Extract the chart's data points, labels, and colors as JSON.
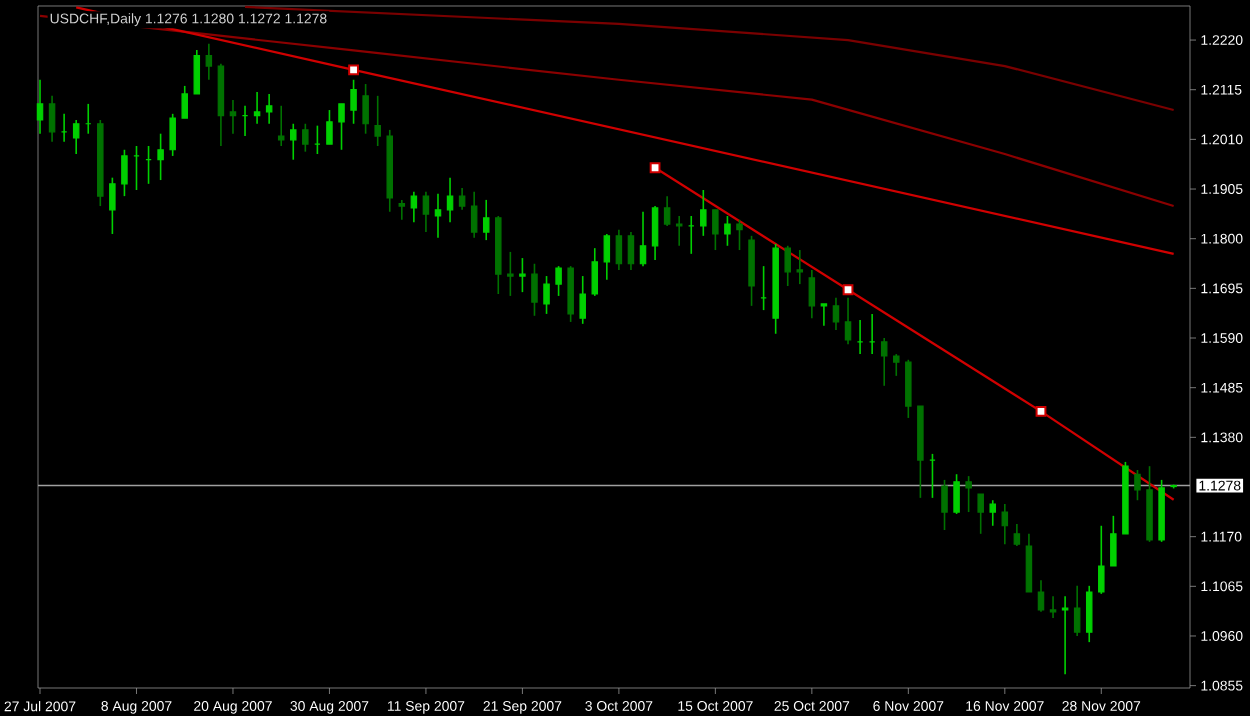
{
  "chart_data": {
    "type": "candlestick",
    "title": "USDCHF,Daily  1.1276 1.1280 1.1272 1.1278",
    "colors": [
      "#00d000",
      "#007200",
      "#00d000",
      "#00d000",
      "#00d000",
      "#007200",
      "#00d000",
      "#00d000",
      "#00d000",
      "#00d000",
      "#00d000",
      "#00d000",
      "#00d000",
      "#00d000",
      "#007200",
      "#007200",
      "#007200",
      "#00d000",
      "#00d000",
      "#00d000",
      "#007200",
      "#00d000",
      "#007200",
      "#00d000",
      "#00d000",
      "#00d000",
      "#00d000",
      "#007200",
      "#007200",
      "#007200",
      "#007200",
      "#00d000",
      "#007200",
      "#00d000",
      "#00d000",
      "#007200",
      "#007200",
      "#00d000",
      "#007200",
      "#007200",
      "#00d000",
      "#007200",
      "#00d000",
      "#00d000",
      "#007200",
      "#00d000",
      "#00d000",
      "#00d000",
      "#007200",
      "#007200",
      "#00d000",
      "#00d000",
      "#007200",
      "#007200",
      "#00d000",
      "#00d000",
      "#007200",
      "#00d000",
      "#007200",
      "#007200",
      "#00d000",
      "#00d000",
      "#007200",
      "#007200",
      "#007200",
      "#00d000",
      "#007200",
      "#007200",
      "#00d000",
      "#00d000",
      "#007200",
      "#007200",
      "#007200",
      "#007200",
      "#00d000",
      "#007200",
      "#00d000",
      "#007200",
      "#007200",
      "#00d000",
      "#007200",
      "#007200",
      "#007200",
      "#007200",
      "#007200",
      "#00d000",
      "#007200",
      "#00d000",
      "#00d000",
      "#00d000",
      "#00d000",
      "#007200",
      "#007200",
      "#00d000",
      "#00d000"
    ],
    "categories": [
      "27 Jul 2007",
      null,
      null,
      null,
      null,
      null,
      null,
      null,
      "8 Aug 2007",
      null,
      null,
      null,
      null,
      null,
      null,
      null,
      "20 Aug 2007",
      null,
      null,
      null,
      null,
      null,
      null,
      null,
      "30 Aug 2007",
      null,
      null,
      null,
      null,
      null,
      null,
      null,
      "11 Sep 2007",
      null,
      null,
      null,
      null,
      null,
      null,
      null,
      "21 Sep 2007",
      null,
      null,
      null,
      null,
      null,
      null,
      null,
      "3 Oct 2007",
      null,
      null,
      null,
      null,
      null,
      null,
      null,
      "15 Oct 2007",
      null,
      null,
      null,
      null,
      null,
      null,
      null,
      "25 Oct 2007",
      null,
      null,
      null,
      null,
      null,
      null,
      null,
      "6 Nov 2007",
      null,
      null,
      null,
      null,
      null,
      null,
      null,
      "16 Nov 2007",
      null,
      null,
      null,
      null,
      null,
      null,
      null,
      "28 Nov 2007",
      null,
      null,
      null,
      null,
      null,
      null
    ],
    "ohlc": [
      [
        1.2051,
        1.2136,
        1.2022,
        1.2085
      ],
      [
        1.2085,
        1.2102,
        1.2005,
        1.2026
      ],
      [
        1.2026,
        1.2064,
        1.2005,
        1.2026
      ],
      [
        1.2013,
        1.2051,
        1.1979,
        1.2043
      ],
      [
        1.2043,
        1.2085,
        1.2022,
        1.2043
      ],
      [
        1.2043,
        1.2051,
        1.1869,
        1.189
      ],
      [
        1.1861,
        1.1929,
        1.181,
        1.1916
      ],
      [
        1.1916,
        1.1988,
        1.189,
        1.1975
      ],
      [
        1.1975,
        1.1996,
        1.1903,
        1.1975
      ],
      [
        1.1967,
        1.1996,
        1.1916,
        1.1967
      ],
      [
        1.1967,
        1.2022,
        1.1924,
        1.1988
      ],
      [
        1.1988,
        1.2064,
        1.1975,
        1.2055
      ],
      [
        1.2055,
        1.2123,
        1.2055,
        1.2106
      ],
      [
        1.2106,
        1.2199,
        1.2106,
        1.2187
      ],
      [
        1.2187,
        1.2212,
        1.2136,
        1.2165
      ],
      [
        1.2165,
        1.217,
        1.1996,
        1.206
      ],
      [
        1.2068,
        1.2093,
        1.2022,
        1.206
      ],
      [
        1.206,
        1.2081,
        1.2017,
        1.206
      ],
      [
        1.206,
        1.211,
        1.2043,
        1.2068
      ],
      [
        1.2068,
        1.2106,
        1.2043,
        1.2081
      ],
      [
        1.2017,
        1.2081,
        1.1996,
        1.2009
      ],
      [
        1.2009,
        1.2043,
        1.1967,
        1.203
      ],
      [
        1.203,
        1.2043,
        1.1984,
        1.2
      ],
      [
        1.2,
        1.2039,
        1.1979,
        1.2
      ],
      [
        1.2,
        1.2072,
        1.2,
        1.2047
      ],
      [
        1.2047,
        1.2085,
        1.1988,
        1.2085
      ],
      [
        1.2072,
        1.2136,
        1.2043,
        1.2115
      ],
      [
        1.2102,
        1.2127,
        1.2022,
        1.2043
      ],
      [
        1.2039,
        1.2102,
        1.1996,
        1.2017
      ],
      [
        1.2017,
        1.203,
        1.1857,
        1.1886
      ],
      [
        1.1874,
        1.1882,
        1.184,
        1.1869
      ],
      [
        1.1865,
        1.1899,
        1.1835,
        1.189
      ],
      [
        1.189,
        1.1899,
        1.1814,
        1.1852
      ],
      [
        1.1848,
        1.1895,
        1.1802,
        1.1861
      ],
      [
        1.1861,
        1.1929,
        1.1835,
        1.189
      ],
      [
        1.189,
        1.1907,
        1.1861,
        1.1869
      ],
      [
        1.1869,
        1.1899,
        1.1802,
        1.1814
      ],
      [
        1.1814,
        1.1882,
        1.1797,
        1.1844
      ],
      [
        1.1844,
        1.1848,
        1.1683,
        1.1725
      ],
      [
        1.1725,
        1.1772,
        1.1679,
        1.1721
      ],
      [
        1.1721,
        1.1759,
        1.1687,
        1.1725
      ],
      [
        1.1725,
        1.1747,
        1.1637,
        1.1666
      ],
      [
        1.1662,
        1.1721,
        1.1641,
        1.1704
      ],
      [
        1.1704,
        1.1742,
        1.1679,
        1.1738
      ],
      [
        1.1738,
        1.1742,
        1.1624,
        1.1641
      ],
      [
        1.1632,
        1.1721,
        1.162,
        1.1683
      ],
      [
        1.1683,
        1.178,
        1.1679,
        1.1751
      ],
      [
        1.1751,
        1.181,
        1.1713,
        1.1806
      ],
      [
        1.1806,
        1.1819,
        1.1734,
        1.1747
      ],
      [
        1.1806,
        1.1814,
        1.1734,
        1.1747
      ],
      [
        1.1747,
        1.1857,
        1.1742,
        1.1785
      ],
      [
        1.1785,
        1.1869,
        1.1755,
        1.1865
      ],
      [
        1.1865,
        1.189,
        1.1827,
        1.1831
      ],
      [
        1.1831,
        1.1848,
        1.1785,
        1.1827
      ],
      [
        1.1827,
        1.1848,
        1.1768,
        1.1827
      ],
      [
        1.1827,
        1.1903,
        1.1806,
        1.1861
      ],
      [
        1.1861,
        1.1861,
        1.1776,
        1.181
      ],
      [
        1.181,
        1.1848,
        1.1785,
        1.1831
      ],
      [
        1.1831,
        1.184,
        1.1776,
        1.1819
      ],
      [
        1.1797,
        1.1806,
        1.1658,
        1.17
      ],
      [
        1.1675,
        1.1742,
        1.1649,
        1.1675
      ],
      [
        1.1632,
        1.1789,
        1.1599,
        1.178
      ],
      [
        1.178,
        1.1785,
        1.17,
        1.173
      ],
      [
        1.1734,
        1.1776,
        1.1704,
        1.173
      ],
      [
        1.1717,
        1.1734,
        1.1632,
        1.1658
      ],
      [
        1.1658,
        1.1662,
        1.1616,
        1.1662
      ],
      [
        1.1658,
        1.1675,
        1.1607,
        1.1624
      ],
      [
        1.1624,
        1.1675,
        1.1577,
        1.1586
      ],
      [
        1.1582,
        1.1628,
        1.1556,
        1.1582
      ],
      [
        1.1582,
        1.1641,
        1.1556,
        1.1582
      ],
      [
        1.1582,
        1.159,
        1.1489,
        1.1552
      ],
      [
        1.1552,
        1.1556,
        1.151,
        1.1539
      ],
      [
        1.1539,
        1.1544,
        1.1421,
        1.1446
      ],
      [
        1.1446,
        1.1446,
        1.1252,
        1.1332
      ],
      [
        1.1332,
        1.1345,
        1.1252,
        1.1332
      ],
      [
        1.1277,
        1.129,
        1.1184,
        1.1222
      ],
      [
        1.1222,
        1.1302,
        1.1218,
        1.1286
      ],
      [
        1.1286,
        1.1298,
        1.1222,
        1.1273
      ],
      [
        1.126,
        1.126,
        1.1176,
        1.1222
      ],
      [
        1.1222,
        1.1247,
        1.1193,
        1.1239
      ],
      [
        1.1222,
        1.1239,
        1.1154,
        1.1193
      ],
      [
        1.1176,
        1.1197,
        1.115,
        1.1154
      ],
      [
        1.115,
        1.1176,
        1.1053,
        1.1053
      ],
      [
        1.1053,
        1.1078,
        1.1011,
        1.1015
      ],
      [
        1.1015,
        1.1044,
        1.0998,
        1.1011
      ],
      [
        1.1015,
        1.1044,
        1.0879,
        1.1019
      ],
      [
        1.1019,
        1.1066,
        1.096,
        1.0968
      ],
      [
        1.0968,
        1.1066,
        1.0947,
        1.1053
      ],
      [
        1.1053,
        1.1193,
        1.1049,
        1.1108
      ],
      [
        1.1108,
        1.1214,
        1.1108,
        1.1176
      ],
      [
        1.1176,
        1.1328,
        1.1176,
        1.1319
      ],
      [
        1.1302,
        1.1311,
        1.1247,
        1.1269
      ],
      [
        1.1269,
        1.1319,
        1.1159,
        1.1163
      ],
      [
        1.1163,
        1.129,
        1.1159,
        1.1273
      ],
      [
        1.1276,
        1.128,
        1.1272,
        1.1278
      ]
    ],
    "series": [
      {
        "type": "line",
        "color": "#7a0000",
        "values": [
          null,
          null,
          null,
          null,
          null,
          null,
          null,
          null,
          null,
          null,
          null,
          null,
          null,
          null,
          null,
          null,
          null,
          1.229,
          null,
          null,
          null,
          null,
          null,
          null,
          null,
          null,
          null,
          null,
          null,
          null,
          null,
          null,
          null,
          null,
          null,
          null,
          null,
          null,
          null,
          null,
          null,
          null,
          null,
          null,
          null,
          null,
          null,
          null,
          1.2254,
          null,
          null,
          null,
          null,
          null,
          null,
          null,
          null,
          null,
          null,
          null,
          null,
          null,
          null,
          null,
          null,
          null,
          null,
          1.222,
          null,
          null,
          null,
          null,
          null,
          null,
          null,
          null,
          null,
          null,
          null,
          null,
          1.2165,
          null,
          null,
          null,
          null,
          null,
          null,
          null,
          null,
          null,
          null,
          null,
          null,
          null,
          1.2072
        ]
      },
      {
        "type": "line",
        "color": "#8b0000",
        "values": [
          1.2271,
          null,
          null,
          null,
          null,
          null,
          null,
          null,
          null,
          null,
          null,
          null,
          null,
          null,
          null,
          null,
          null,
          null,
          null,
          null,
          null,
          null,
          null,
          null,
          null,
          null,
          1.2198,
          null,
          null,
          null,
          null,
          null,
          null,
          null,
          null,
          null,
          null,
          null,
          null,
          null,
          null,
          null,
          null,
          null,
          null,
          null,
          null,
          null,
          1.2136,
          null,
          null,
          null,
          null,
          null,
          null,
          null,
          null,
          null,
          null,
          null,
          null,
          null,
          null,
          null,
          1.2094,
          null,
          null,
          null,
          null,
          null,
          null,
          null,
          null,
          null,
          null,
          null,
          null,
          null,
          null,
          null,
          1.1979,
          null,
          null,
          null,
          null,
          null,
          null,
          null,
          null,
          null,
          null,
          null,
          null,
          null,
          1.1869
        ]
      },
      {
        "type": "line",
        "color": "#d00000",
        "values": [
          null,
          null,
          null,
          1.2289,
          null,
          null,
          null,
          null,
          null,
          null,
          null,
          null,
          null,
          null,
          null,
          null,
          null,
          null,
          null,
          null,
          null,
          null,
          null,
          null,
          null,
          null,
          1.2157,
          null,
          null,
          null,
          null,
          null,
          null,
          null,
          null,
          null,
          null,
          null,
          null,
          null,
          null,
          null,
          null,
          null,
          null,
          null,
          null,
          null,
          null,
          null,
          null,
          null,
          null,
          null,
          null,
          null,
          null,
          null,
          null,
          null,
          null,
          null,
          null,
          null,
          null,
          null,
          null,
          null,
          null,
          null,
          null,
          null,
          null,
          null,
          null,
          null,
          null,
          null,
          null,
          null,
          null,
          null,
          null,
          null,
          null,
          null,
          null,
          null,
          null,
          null,
          null,
          null,
          null,
          null,
          1.1768
        ]
      },
      {
        "type": "line",
        "color": "#d00000",
        "values": [
          null,
          null,
          null,
          null,
          null,
          null,
          null,
          null,
          null,
          null,
          null,
          null,
          null,
          null,
          null,
          null,
          null,
          null,
          null,
          null,
          null,
          null,
          null,
          null,
          null,
          null,
          null,
          null,
          null,
          null,
          null,
          null,
          null,
          null,
          null,
          null,
          null,
          null,
          null,
          null,
          null,
          null,
          null,
          null,
          null,
          null,
          null,
          null,
          null,
          null,
          null,
          1.195,
          null,
          null,
          null,
          null,
          null,
          null,
          null,
          null,
          null,
          null,
          null,
          null,
          null,
          null,
          null,
          1.1692,
          null,
          null,
          null,
          null,
          null,
          null,
          null,
          null,
          null,
          null,
          null,
          null,
          null,
          null,
          null,
          1.1435,
          null,
          null,
          null,
          null,
          null,
          null,
          null,
          null,
          null,
          null,
          1.1248
        ]
      },
      {
        "type": "scatter",
        "marker": "square",
        "color": "#d00000",
        "values": [
          null,
          null,
          null,
          null,
          null,
          null,
          null,
          null,
          null,
          null,
          null,
          null,
          null,
          null,
          null,
          null,
          null,
          null,
          null,
          null,
          null,
          null,
          null,
          null,
          null,
          null,
          1.2157,
          null,
          null,
          null,
          null,
          null,
          null,
          null,
          null,
          null,
          null,
          null,
          null,
          null,
          null,
          null,
          null,
          null,
          null,
          null,
          null,
          null,
          null,
          null,
          null,
          1.195,
          null,
          null,
          null,
          null,
          null,
          null,
          null,
          null,
          null,
          null,
          null,
          null,
          null,
          null,
          null,
          1.1692,
          null,
          null,
          null,
          null,
          null,
          null,
          null,
          null,
          null,
          null,
          null,
          null,
          null,
          null,
          null,
          1.1435,
          null,
          null,
          null,
          null,
          null,
          null,
          null,
          null,
          null,
          null,
          null
        ]
      }
    ],
    "ylim": [
      1.085,
      1.2292
    ],
    "yticks": [
      {
        "value": 1.222,
        "label": "1.2220"
      },
      {
        "value": 1.2115,
        "label": "1.2115"
      },
      {
        "value": 1.201,
        "label": "1.2010"
      },
      {
        "value": 1.1905,
        "label": "1.1905"
      },
      {
        "value": 1.18,
        "label": "1.1800"
      },
      {
        "value": 1.1695,
        "label": "1.1695"
      },
      {
        "value": 1.159,
        "label": "1.1590"
      },
      {
        "value": 1.1485,
        "label": "1.1485"
      },
      {
        "value": 1.138,
        "label": "1.1380"
      },
      {
        "value": 1.117,
        "label": "1.1170"
      },
      {
        "value": 1.1065,
        "label": "1.1065"
      },
      {
        "value": 1.096,
        "label": "1.0960"
      },
      {
        "value": 1.0855,
        "label": "1.0855"
      }
    ],
    "ref_lines": [
      {
        "axis": "y",
        "value": 1.1278,
        "label": "1.1278",
        "color": "#a0a0a0"
      }
    ]
  }
}
